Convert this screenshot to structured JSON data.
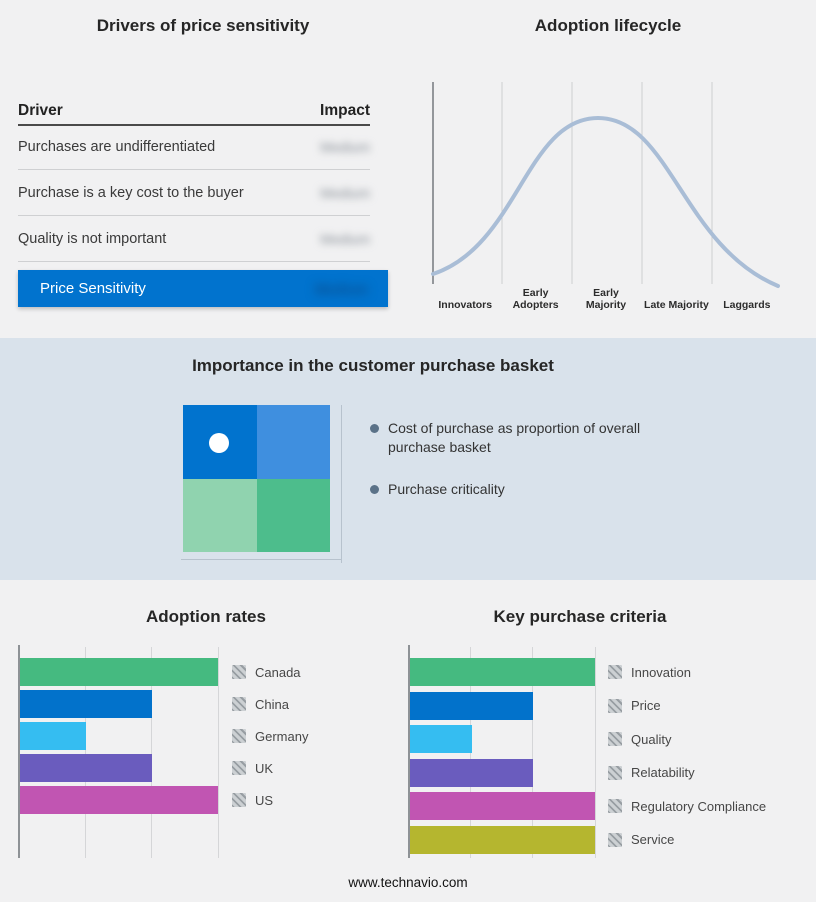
{
  "page": {
    "footer_url": "www.technavio.com",
    "background_color": "#F1F1F2",
    "band_color": "#D9E2EB"
  },
  "drivers": {
    "title": "Drivers of price sensitivity",
    "columns": {
      "driver": "Driver",
      "impact": "Impact"
    },
    "rows": [
      {
        "driver": "Purchases are undifferentiated",
        "impact": "Medium",
        "impact_redacted": true
      },
      {
        "driver": "Purchase is a key cost to the buyer",
        "impact": "Medium",
        "impact_redacted": true
      },
      {
        "driver": "Quality is not important",
        "impact": "Medium",
        "impact_redacted": true
      }
    ],
    "summary": {
      "label": "Price Sensitivity",
      "impact": "Medium",
      "impact_redacted": true
    },
    "accent_color": "#0173CE"
  },
  "basket": {
    "title": "Importance in the customer purchase basket",
    "bullets": [
      "Cost of purchase as proportion of overall purchase basket",
      "Purchase criticality"
    ],
    "quadrant_colors": {
      "top_left": "#0173CE",
      "top_right": "#3F8FDF",
      "bottom_left": "#90D3AF",
      "bottom_right": "#4DBD8C"
    }
  },
  "chart_data": [
    {
      "type": "line",
      "title": "Adoption lifecycle",
      "categories": [
        "Innovators",
        "Early Adopters",
        "Early Majority",
        "Late Majority",
        "Laggards"
      ],
      "relative_curve_heights": [
        0.05,
        0.55,
        1.0,
        0.55,
        0.05
      ],
      "curve_color": "#A9BDD6",
      "grid": true,
      "legend_position": "none"
    },
    {
      "type": "bar",
      "orientation": "horizontal",
      "title": "Adoption rates",
      "categories": [
        "Canada",
        "China",
        "Germany",
        "UK",
        "US"
      ],
      "values": [
        3,
        2,
        1,
        2,
        3
      ],
      "xlim": [
        0,
        3.15
      ],
      "gridlines": [
        1,
        2,
        3
      ],
      "colors": [
        "#45BA80",
        "#0272CB",
        "#35BDF1",
        "#6A5CBE",
        "#C155B2"
      ],
      "legend_position": "right"
    },
    {
      "type": "bar",
      "orientation": "horizontal",
      "title": "Key purchase criteria",
      "categories": [
        "Innovation",
        "Price",
        "Quality",
        "Relatability",
        "Regulatory Compliance",
        "Service"
      ],
      "values": [
        3,
        2,
        1,
        2,
        3,
        3
      ],
      "xlim": [
        0,
        3.15
      ],
      "gridlines": [
        1,
        2,
        3
      ],
      "colors": [
        "#45BA80",
        "#0272CB",
        "#35BDF1",
        "#6A5CBE",
        "#C155B2",
        "#B5B62F"
      ],
      "legend_position": "right"
    }
  ]
}
